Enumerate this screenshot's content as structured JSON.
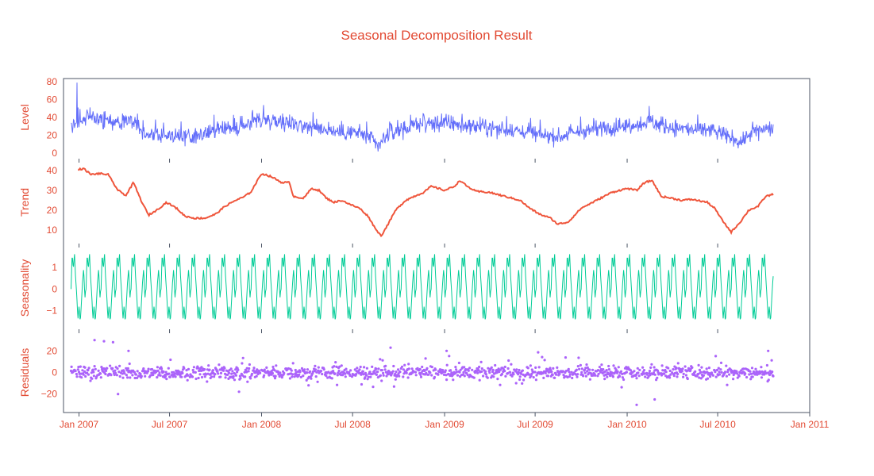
{
  "chart_data": {
    "type": "line",
    "title": "Seasonal Decomposition Result",
    "colors": {
      "text": "#e24a33",
      "frame": "#4c5666",
      "level": "#636efa",
      "trend": "#ef553b",
      "seasonality": "#00cc96",
      "residuals": "#ab63fa"
    },
    "x_axis": {
      "type": "date",
      "range": [
        "2006-12-01",
        "2011-01-01"
      ],
      "tick_labels": [
        "Jan 2007",
        "Jul 2007",
        "Jan 2008",
        "Jul 2008",
        "Jan 2009",
        "Jul 2009",
        "Jan 2010",
        "Jul 2010",
        "Jan 2011"
      ],
      "tick_dates": [
        "2007-01-01",
        "2007-07-01",
        "2008-01-01",
        "2008-07-01",
        "2009-01-01",
        "2009-07-01",
        "2010-01-01",
        "2010-07-01",
        "2011-01-01"
      ]
    },
    "data_range": [
      "2006-12-16",
      "2010-10-20"
    ],
    "panels": [
      {
        "name": "level",
        "ylabel": "Level",
        "mode": "lines",
        "ylim": [
          0,
          80
        ],
        "yticks": [
          0,
          20,
          40,
          60,
          80
        ],
        "ytick_labels": [
          "0",
          "20",
          "40",
          "60",
          "80"
        ],
        "peak_value": 79,
        "points": [
          [
            "2006-12-16",
            30
          ],
          [
            "2007-01-15",
            40
          ],
          [
            "2007-02-15",
            38
          ],
          [
            "2007-03-15",
            33
          ],
          [
            "2007-04-15",
            38
          ],
          [
            "2007-05-15",
            22
          ],
          [
            "2007-06-15",
            20
          ],
          [
            "2007-07-15",
            19
          ],
          [
            "2007-08-15",
            17
          ],
          [
            "2007-09-15",
            22
          ],
          [
            "2007-10-15",
            26
          ],
          [
            "2007-11-15",
            28
          ],
          [
            "2007-12-15",
            37
          ],
          [
            "2008-01-15",
            38
          ],
          [
            "2008-02-15",
            35
          ],
          [
            "2008-03-15",
            32
          ],
          [
            "2008-04-15",
            28
          ],
          [
            "2008-05-15",
            26
          ],
          [
            "2008-06-15",
            22
          ],
          [
            "2008-07-15",
            23
          ],
          [
            "2008-08-01",
            18
          ],
          [
            "2008-08-20",
            8
          ],
          [
            "2008-09-15",
            24
          ],
          [
            "2008-10-15",
            28
          ],
          [
            "2008-11-15",
            34
          ],
          [
            "2008-12-15",
            32
          ],
          [
            "2009-01-15",
            34
          ],
          [
            "2009-02-15",
            30
          ],
          [
            "2009-03-15",
            30
          ],
          [
            "2009-04-15",
            27
          ],
          [
            "2009-05-15",
            26
          ],
          [
            "2009-06-15",
            24
          ],
          [
            "2009-07-15",
            20
          ],
          [
            "2009-08-15",
            18
          ],
          [
            "2009-09-15",
            22
          ],
          [
            "2009-10-15",
            26
          ],
          [
            "2009-11-15",
            28
          ],
          [
            "2009-12-15",
            30
          ],
          [
            "2010-01-15",
            32
          ],
          [
            "2010-02-15",
            36
          ],
          [
            "2010-03-15",
            30
          ],
          [
            "2010-04-15",
            28
          ],
          [
            "2010-05-15",
            26
          ],
          [
            "2010-06-15",
            26
          ],
          [
            "2010-07-15",
            20
          ],
          [
            "2010-08-15",
            12
          ],
          [
            "2010-09-15",
            26
          ],
          [
            "2010-10-20",
            28
          ]
        ]
      },
      {
        "name": "trend",
        "ylabel": "Trend",
        "mode": "lines",
        "ylim": [
          6,
          42
        ],
        "yticks": [
          10,
          20,
          30,
          40
        ],
        "ytick_labels": [
          "10",
          "20",
          "30",
          "40"
        ],
        "points": [
          [
            "2006-12-30",
            40.5
          ],
          [
            "2007-01-10",
            41
          ],
          [
            "2007-01-25",
            38
          ],
          [
            "2007-02-10",
            38.5
          ],
          [
            "2007-02-28",
            38
          ],
          [
            "2007-03-20",
            30
          ],
          [
            "2007-04-05",
            27.5
          ],
          [
            "2007-04-20",
            34
          ],
          [
            "2007-05-05",
            25
          ],
          [
            "2007-05-20",
            17.5
          ],
          [
            "2007-06-05",
            20
          ],
          [
            "2007-06-25",
            24
          ],
          [
            "2007-07-15",
            21
          ],
          [
            "2007-08-01",
            17
          ],
          [
            "2007-08-20",
            16
          ],
          [
            "2007-09-10",
            16
          ],
          [
            "2007-10-01",
            18
          ],
          [
            "2007-10-20",
            22
          ],
          [
            "2007-11-10",
            25
          ],
          [
            "2007-11-25",
            26.5
          ],
          [
            "2007-12-10",
            29
          ],
          [
            "2008-01-01",
            38.5
          ],
          [
            "2008-01-20",
            37
          ],
          [
            "2008-02-10",
            34
          ],
          [
            "2008-02-25",
            34
          ],
          [
            "2008-03-05",
            27
          ],
          [
            "2008-03-25",
            26
          ],
          [
            "2008-04-10",
            31
          ],
          [
            "2008-04-25",
            30
          ],
          [
            "2008-05-10",
            26
          ],
          [
            "2008-05-25",
            24
          ],
          [
            "2008-06-10",
            25
          ],
          [
            "2008-06-25",
            23
          ],
          [
            "2008-07-15",
            21
          ],
          [
            "2008-08-01",
            17
          ],
          [
            "2008-08-15",
            11
          ],
          [
            "2008-08-27",
            7
          ],
          [
            "2008-09-10",
            13
          ],
          [
            "2008-09-25",
            20
          ],
          [
            "2008-10-15",
            25
          ],
          [
            "2008-11-01",
            27
          ],
          [
            "2008-11-20",
            29
          ],
          [
            "2008-12-05",
            32
          ],
          [
            "2008-12-20",
            31
          ],
          [
            "2009-01-01",
            30
          ],
          [
            "2009-01-20",
            32
          ],
          [
            "2009-02-01",
            35
          ],
          [
            "2009-02-15",
            32
          ],
          [
            "2009-03-05",
            29.5
          ],
          [
            "2009-04-01",
            29
          ],
          [
            "2009-05-01",
            27
          ],
          [
            "2009-06-01",
            25
          ],
          [
            "2009-06-20",
            21
          ],
          [
            "2009-07-10",
            18
          ],
          [
            "2009-08-01",
            16
          ],
          [
            "2009-08-15",
            13
          ],
          [
            "2009-09-05",
            14
          ],
          [
            "2009-10-01",
            21
          ],
          [
            "2009-11-01",
            25
          ],
          [
            "2009-12-01",
            29
          ],
          [
            "2010-01-01",
            31
          ],
          [
            "2010-01-20",
            30
          ],
          [
            "2010-02-05",
            34
          ],
          [
            "2010-02-20",
            35
          ],
          [
            "2010-03-10",
            27
          ],
          [
            "2010-04-01",
            26
          ],
          [
            "2010-04-20",
            25
          ],
          [
            "2010-05-10",
            25.5
          ],
          [
            "2010-06-10",
            24
          ],
          [
            "2010-06-25",
            21
          ],
          [
            "2010-07-10",
            15
          ],
          [
            "2010-07-28",
            9
          ],
          [
            "2010-08-15",
            14
          ],
          [
            "2010-09-01",
            20
          ],
          [
            "2010-09-20",
            22
          ],
          [
            "2010-10-05",
            27
          ],
          [
            "2010-10-20",
            28
          ]
        ]
      },
      {
        "name": "seasonality",
        "ylabel": "Seasonality",
        "mode": "lines",
        "ylim": [
          -1.6,
          1.7
        ],
        "yticks": [
          -1,
          0,
          1
        ],
        "ytick_labels": [
          "−1",
          "0",
          "1"
        ],
        "amplitude": [
          -1.55,
          1.65
        ],
        "period_days": 30
      },
      {
        "name": "residuals",
        "ylabel": "Residuals",
        "mode": "markers",
        "ylim": [
          -32,
          32
        ],
        "yticks": [
          -20,
          0,
          20
        ],
        "ytick_labels": [
          "−20",
          "0",
          "20"
        ],
        "extremes": [
          [
            "2007-02-01",
            30
          ],
          [
            "2007-02-20",
            29
          ],
          [
            "2007-03-10",
            28
          ],
          [
            "2007-03-20",
            -20
          ],
          [
            "2007-04-10",
            20
          ],
          [
            "2008-09-15",
            23
          ],
          [
            "2009-01-05",
            20
          ],
          [
            "2010-01-20",
            -30
          ],
          [
            "2010-02-25",
            -25
          ],
          [
            "2010-10-10",
            20
          ]
        ]
      }
    ]
  }
}
